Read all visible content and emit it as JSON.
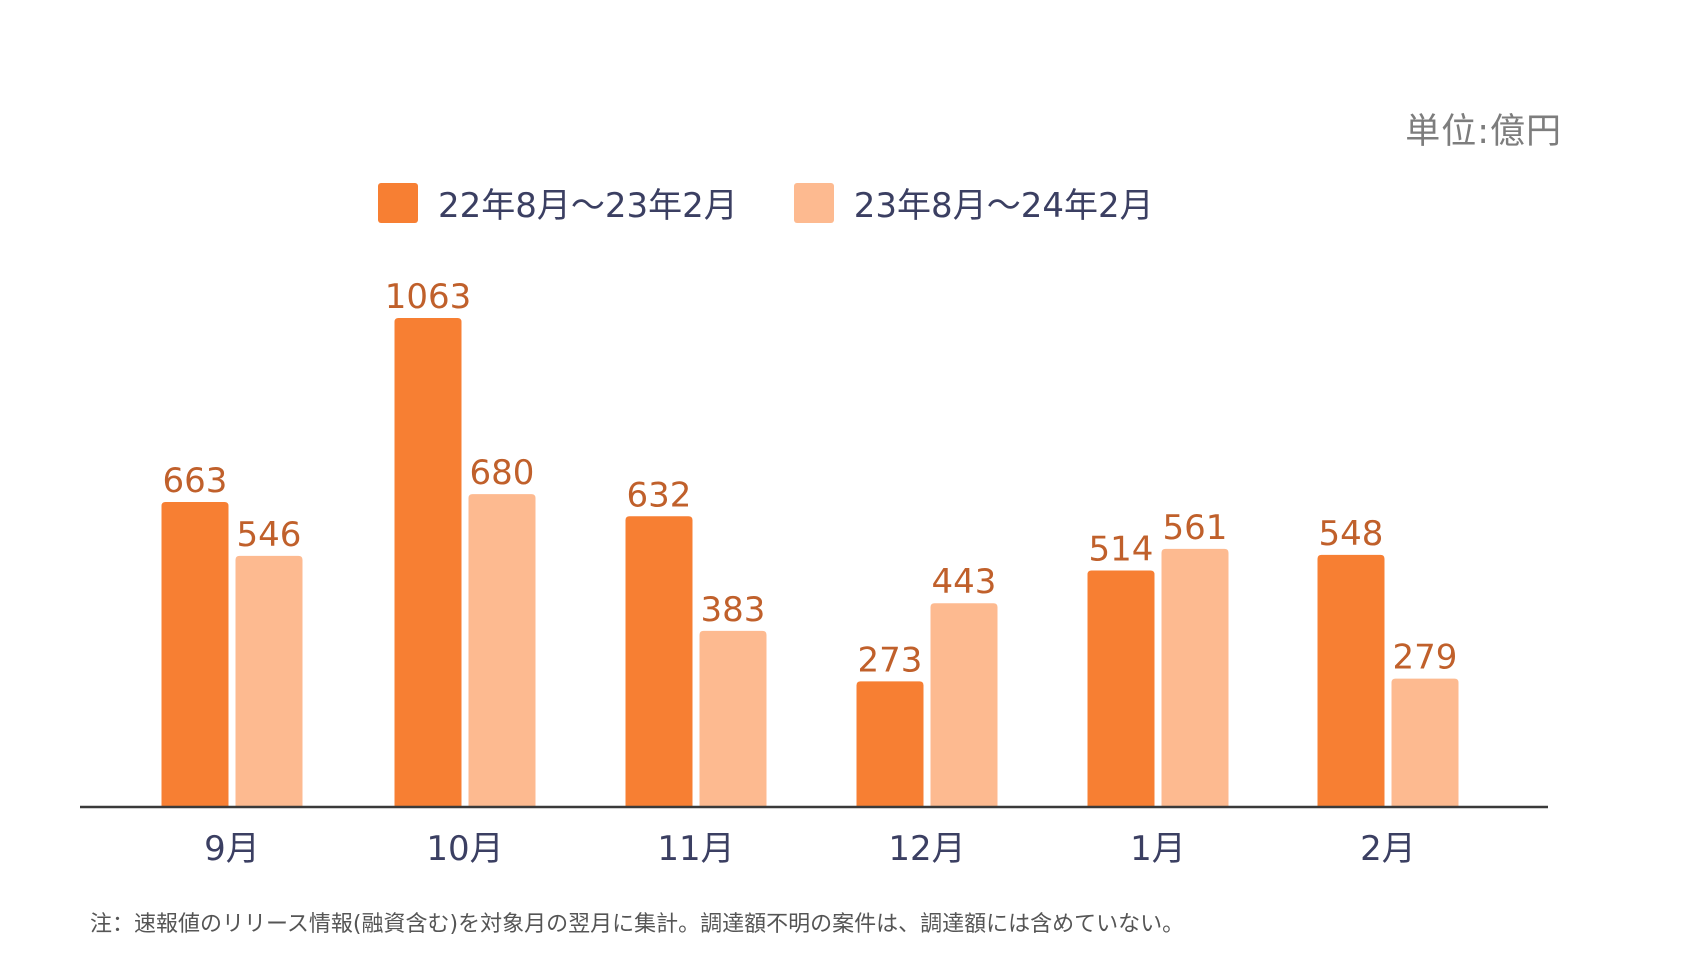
{
  "unit_label": "単位:億円",
  "note": "注：速報値のリリース情報(融資含む)を対象月の翌月に集計。調達額不明の案件は、調達額には含めていない。",
  "colors": {
    "series1": "#f77f33",
    "series2": "#fdba90",
    "value_label": "#c0602b",
    "axis": "#3a3a3a",
    "tick_label": "#3b3f62"
  },
  "chart_data": {
    "type": "bar",
    "categories": [
      "9月",
      "10月",
      "11月",
      "12月",
      "1月",
      "2月"
    ],
    "series": [
      {
        "name": "22年8月〜23年2月",
        "values": [
          663,
          1063,
          632,
          273,
          514,
          548
        ]
      },
      {
        "name": "23年8月〜24年2月",
        "values": [
          546,
          680,
          383,
          443,
          561,
          279
        ]
      }
    ],
    "title": "",
    "xlabel": "",
    "ylabel": "",
    "ylim": [
      0,
      1063
    ],
    "grid": false,
    "legend": "top-center",
    "unit": "単位:億円"
  }
}
